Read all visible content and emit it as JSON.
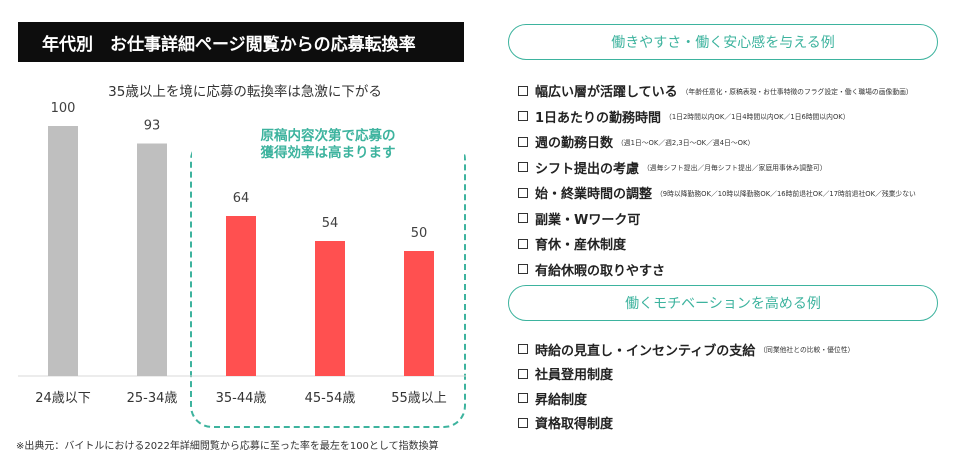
{
  "chart_title": "年代別　お仕事詳細ページ閲覧からの応募転換率",
  "chart_data": {
    "type": "bar",
    "title": "",
    "subtitle": "35歳以上を境に応募の転換率は急激に下がる",
    "categories": [
      "24歳以下",
      "25-34歳",
      "35-44歳",
      "45-54歳",
      "55歳以上"
    ],
    "values": [
      100,
      93,
      64,
      54,
      50
    ],
    "colors": [
      "#bfbfbf",
      "#bfbfbf",
      "#ff5050",
      "#ff5050",
      "#ff5050"
    ],
    "ylim": [
      0,
      100
    ],
    "grid": false,
    "xlabel": "",
    "ylabel": ""
  },
  "highlight": {
    "line1": "原稿内容次第で応募の",
    "line2": "獲得効率は高まります",
    "color": "#3db39e"
  },
  "source_note": "※出典元：バイトルにおける2022年詳細閲覧から応募に至った率を最左を100として指数換算",
  "section1": {
    "heading": "働きやすさ・働く安心感を与える例",
    "items": [
      {
        "label": "幅広い層が活躍している",
        "note": "（年齢任意化・原稿表現・お仕事特徴のフラグ設定・働く職場の画像動画）"
      },
      {
        "label": "1日あたりの勤務時間",
        "note": "（1日2時間以内OK／1日4時間以内OK／1日6時間以内OK）"
      },
      {
        "label": "週の勤務日数",
        "note": "（週1日〜OK／週2,3日〜OK／週4日〜OK）"
      },
      {
        "label": "シフト提出の考慮",
        "note": "（週毎シフト提出／月毎シフト提出／家庭用事休み調整可）"
      },
      {
        "label": "始・終業時間の調整",
        "note": "（9時以降勤務OK／10時以降勤務OK／16時前退社OK／17時前退社OK／残業少ない"
      },
      {
        "label": "副業・Wワーク可",
        "note": ""
      },
      {
        "label": "育休・産休制度",
        "note": ""
      },
      {
        "label": "有給休暇の取りやすさ",
        "note": ""
      }
    ]
  },
  "section2": {
    "heading": "働くモチベーションを高める例",
    "items": [
      {
        "label": "時給の見直し・インセンティブの支給",
        "note": "（同業他社との比較・優位性）"
      },
      {
        "label": "社員登用制度",
        "note": ""
      },
      {
        "label": "昇給制度",
        "note": ""
      },
      {
        "label": "資格取得制度",
        "note": ""
      }
    ]
  },
  "accent_color": "#3db39e"
}
